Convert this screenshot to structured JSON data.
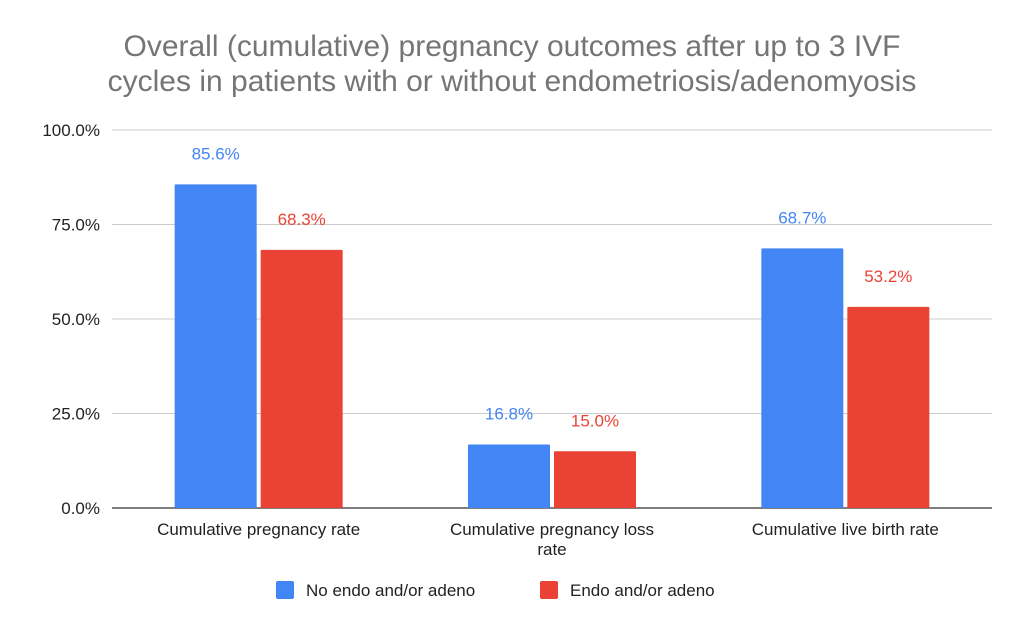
{
  "chart_data": {
    "type": "bar",
    "title_lines": [
      "Overall (cumulative) pregnancy outcomes after up to 3 IVF",
      "cycles in patients with or without endometriosis/adenomyosis"
    ],
    "categories": [
      [
        "Cumulative pregnancy rate"
      ],
      [
        "Cumulative pregnancy loss",
        "rate"
      ],
      [
        "Cumulative live birth rate"
      ]
    ],
    "series": [
      {
        "name": "No endo and/or adeno",
        "color": "#4285F4",
        "values": [
          85.6,
          16.8,
          68.7
        ],
        "labels": [
          "85.6%",
          "16.8%",
          "68.7%"
        ]
      },
      {
        "name": "Endo and/or adeno",
        "color": "#EA4335",
        "values": [
          68.3,
          15.0,
          53.2
        ],
        "labels": [
          "68.3%",
          "15.0%",
          "53.2%"
        ]
      }
    ],
    "ylim": [
      0,
      100
    ],
    "yticks": [
      0,
      25,
      50,
      75,
      100
    ],
    "ytick_labels": [
      "0.0%",
      "25.0%",
      "50.0%",
      "75.0%",
      "100.0%"
    ],
    "xlabel": "",
    "ylabel": "",
    "grid": true,
    "legend_position": "bottom-center"
  }
}
